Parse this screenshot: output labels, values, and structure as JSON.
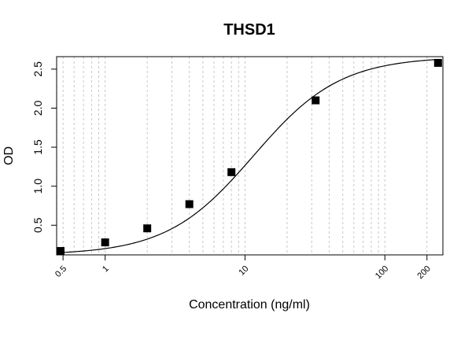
{
  "chart_data": {
    "type": "scatter",
    "title": "THSD1",
    "xlabel": "Concentration (ng/ml)",
    "ylabel": "OD",
    "x_scale": "log",
    "xlim": [
      0.45,
      260
    ],
    "ylim": [
      0.12,
      2.66
    ],
    "x_ticks": [
      0.5,
      1,
      10,
      100,
      200
    ],
    "x_tick_labels": [
      "0.5",
      "1",
      "10",
      "100",
      "200"
    ],
    "y_ticks": [
      0.5,
      1.0,
      1.5,
      2.0,
      2.5
    ],
    "y_tick_labels": [
      "0.5",
      "1.0",
      "1.5",
      "2.0",
      "2.5"
    ],
    "grid": "vertical dotted at minor log ticks",
    "legend": "none",
    "fit_curve": "4-parameter logistic",
    "series": [
      {
        "points": [
          {
            "x": 0.48,
            "y": 0.17
          },
          {
            "x": 1,
            "y": 0.28
          },
          {
            "x": 2,
            "y": 0.46
          },
          {
            "x": 4,
            "y": 0.77
          },
          {
            "x": 8,
            "y": 1.18
          },
          {
            "x": 32,
            "y": 2.1
          },
          {
            "x": 240,
            "y": 2.58
          }
        ]
      }
    ],
    "colors": {
      "marker": "#000000",
      "line": "#000000",
      "grid": "#c8c8c8"
    }
  }
}
